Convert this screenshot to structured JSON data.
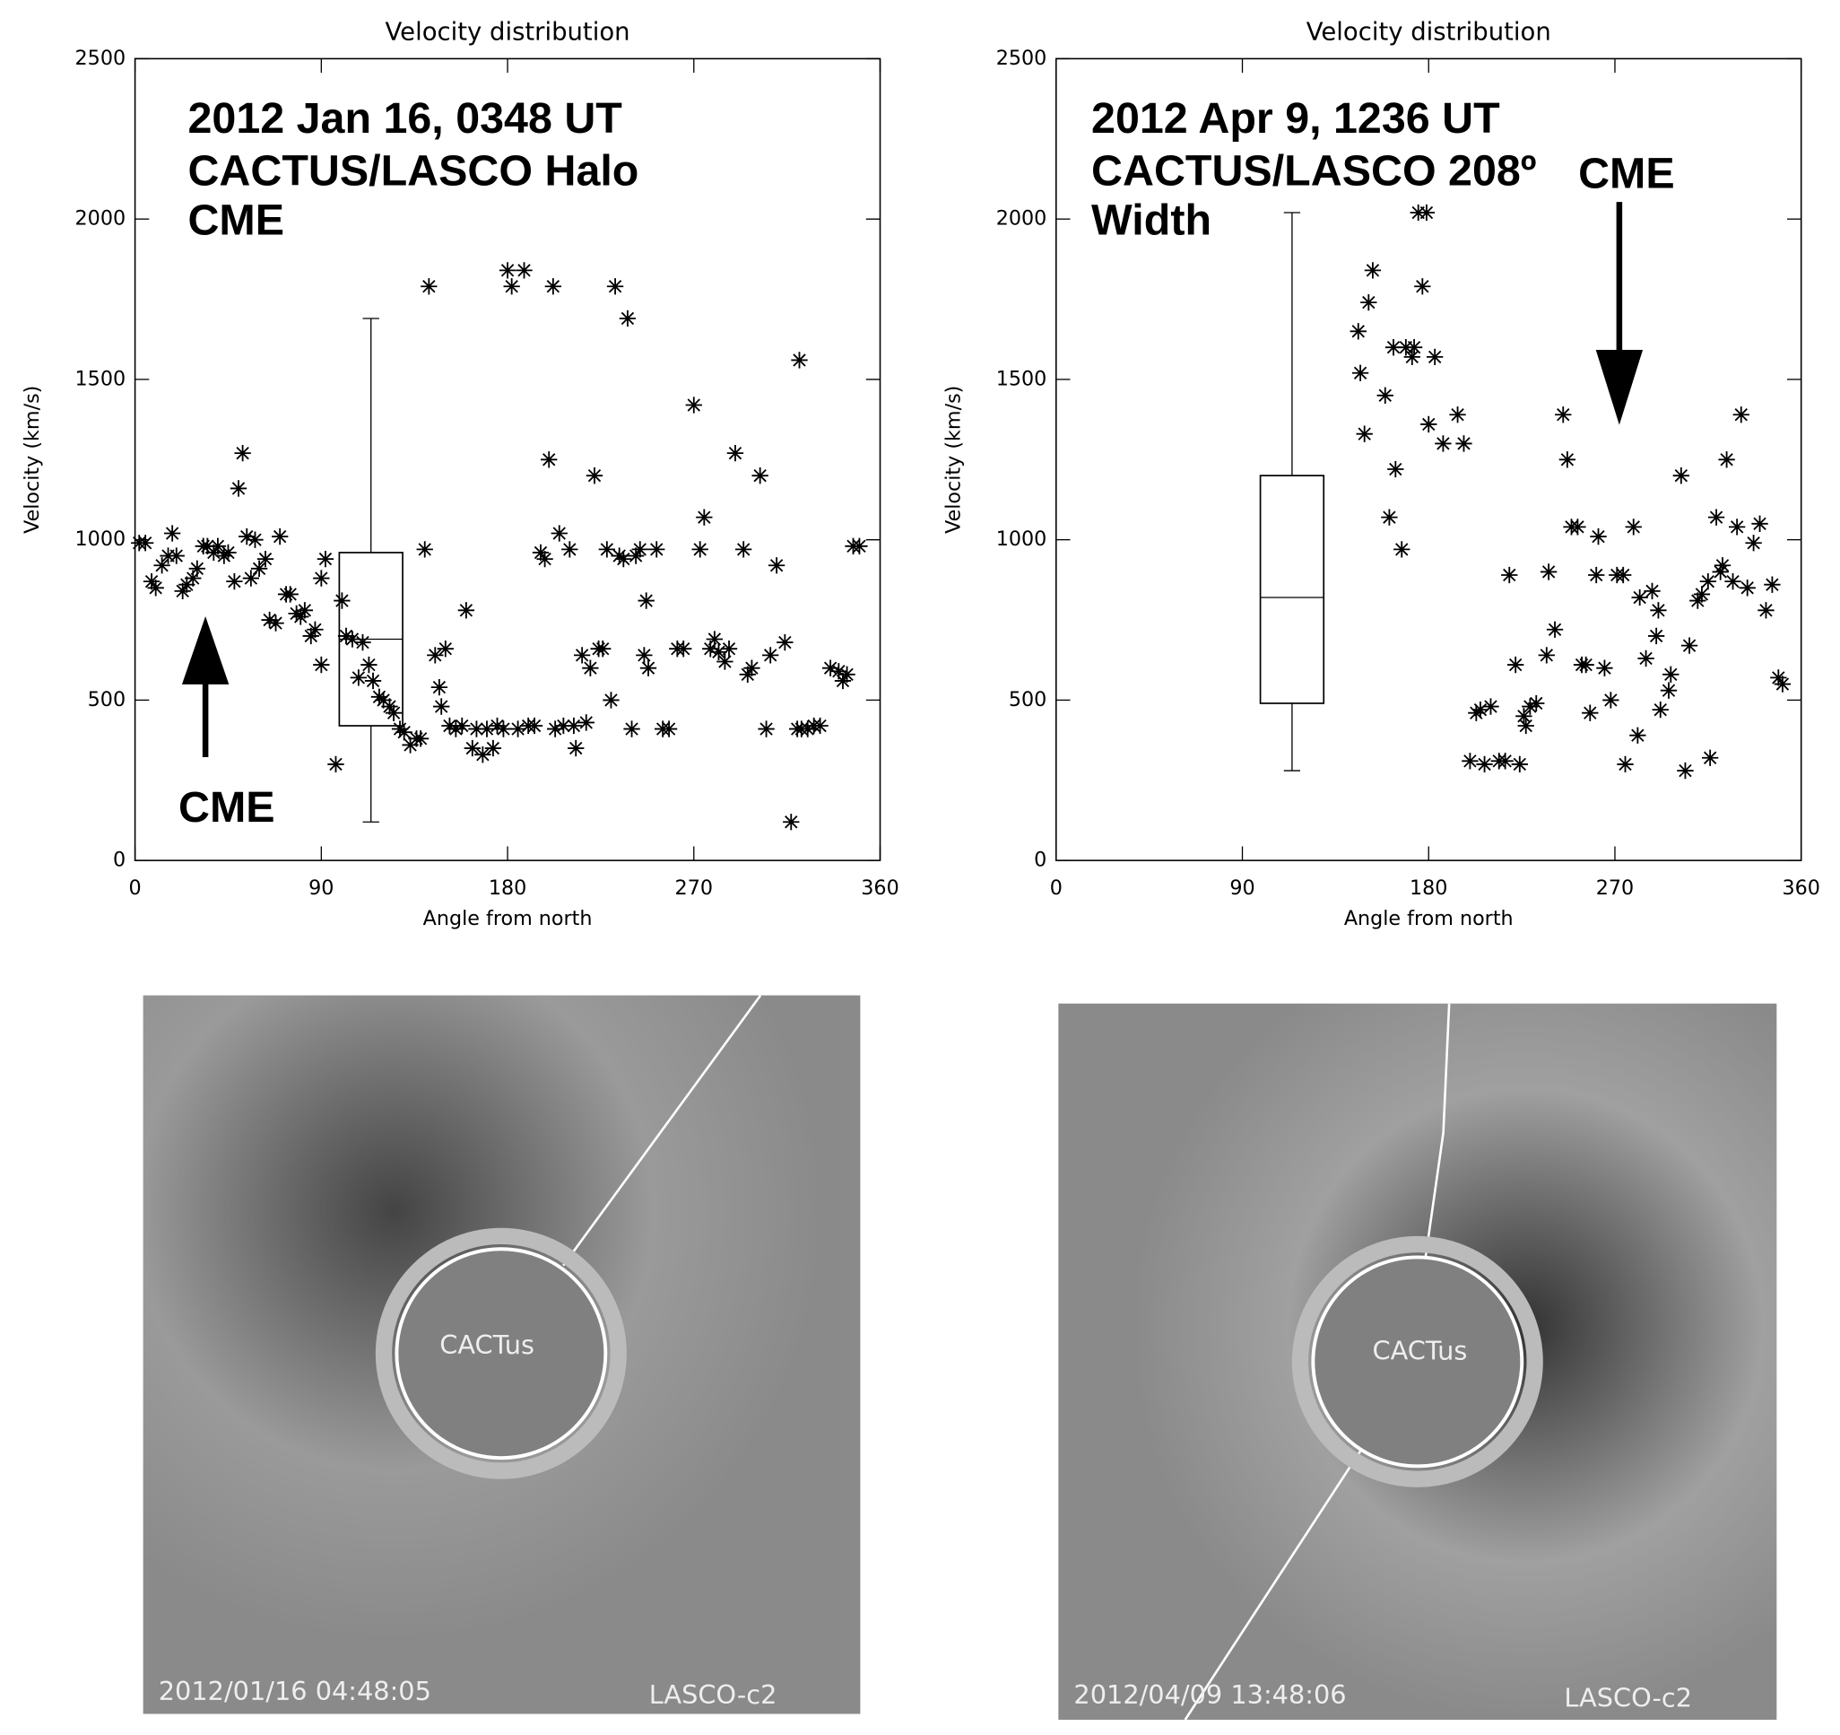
{
  "chart_data": [
    {
      "type": "scatter",
      "title": "Velocity distribution",
      "xlabel": "Angle from north",
      "ylabel": "Velocity (km/s)",
      "xlim": [
        0,
        360
      ],
      "xticks": [
        0,
        90,
        180,
        270,
        360
      ],
      "ylim": [
        0,
        2500
      ],
      "yticks": [
        0,
        500,
        1000,
        1500,
        2000,
        2500
      ],
      "annotations": [
        "2012 Jan 16, 0348 UT",
        "CACTUS/LASCO Halo",
        "CME",
        "CME"
      ],
      "box": {
        "x": 114,
        "min": 120,
        "q1": 420,
        "median": 690,
        "q3": 960,
        "max": 1690
      },
      "series": [
        {
          "color": "#000000",
          "x": [
            2,
            5,
            8,
            10,
            13,
            16,
            18,
            20,
            23,
            25,
            28,
            30,
            33,
            35,
            38,
            40,
            43,
            45,
            48,
            50,
            52,
            54,
            56,
            58,
            60,
            63,
            65,
            68,
            70,
            73,
            75,
            78,
            80,
            82,
            85,
            87,
            90,
            90,
            92,
            97,
            100,
            102,
            105,
            108,
            110,
            113,
            115,
            118,
            120,
            123,
            125,
            128,
            130,
            133,
            136,
            138,
            140,
            142,
            145,
            147,
            148,
            150,
            152,
            155,
            158,
            160,
            163,
            165,
            168,
            170,
            173,
            175,
            178,
            180,
            182,
            185,
            188,
            190,
            193,
            196,
            198,
            200,
            202,
            203,
            205,
            207,
            210,
            212,
            213,
            216,
            218,
            220,
            222,
            224,
            226,
            228,
            230,
            232,
            234,
            236,
            238,
            240,
            242,
            244,
            246,
            247,
            248,
            252,
            255,
            258,
            262,
            265,
            270,
            273,
            275,
            278,
            280,
            282,
            285,
            287,
            290,
            294,
            296,
            298,
            302,
            305,
            307,
            310,
            314,
            317,
            320,
            321,
            322,
            325,
            328,
            331,
            336,
            340,
            342,
            344,
            347,
            350
          ],
          "values": [
            990,
            990,
            870,
            850,
            920,
            950,
            1020,
            950,
            840,
            860,
            880,
            910,
            980,
            980,
            960,
            980,
            950,
            960,
            870,
            1160,
            1270,
            1010,
            880,
            1000,
            910,
            940,
            750,
            740,
            1010,
            830,
            830,
            770,
            760,
            780,
            700,
            720,
            610,
            880,
            940,
            300,
            810,
            700,
            690,
            570,
            680,
            610,
            560,
            510,
            500,
            480,
            460,
            410,
            400,
            360,
            380,
            380,
            970,
            1790,
            640,
            540,
            480,
            660,
            420,
            410,
            420,
            780,
            350,
            410,
            330,
            410,
            350,
            420,
            410,
            1840,
            1790,
            410,
            1840,
            420,
            420,
            960,
            940,
            1250,
            1790,
            410,
            1020,
            420,
            970,
            420,
            350,
            640,
            430,
            600,
            1200,
            660,
            660,
            970,
            500,
            1790,
            950,
            940,
            1690,
            410,
            950,
            970,
            640,
            810,
            600,
            970,
            410,
            410,
            660,
            660,
            1420,
            970,
            1070,
            660,
            690,
            650,
            620,
            660,
            1270,
            970,
            580,
            600,
            1200,
            410,
            640,
            920,
            680,
            120,
            410,
            1560,
            410,
            410,
            420,
            420,
            600,
            590,
            560,
            580,
            980,
            980
          ]
        }
      ]
    },
    {
      "type": "scatter",
      "title": "Velocity distribution",
      "xlabel": "Angle from north",
      "ylabel": "Velocity (km/s)",
      "xlim": [
        0,
        360
      ],
      "xticks": [
        0,
        90,
        180,
        270,
        360
      ],
      "ylim": [
        0,
        2500
      ],
      "yticks": [
        0,
        500,
        1000,
        1500,
        2000,
        2500
      ],
      "annotations": [
        "2012 Apr 9, 1236 UT",
        "CACTUS/LASCO 208º",
        "Width",
        "CME"
      ],
      "box": {
        "x": 114,
        "min": 280,
        "q1": 490,
        "median": 820,
        "q3": 1200,
        "max": 2020
      },
      "series": [
        {
          "color": "#000000",
          "x": [
            146,
            147,
            149,
            151,
            153,
            159,
            161,
            163,
            164,
            167,
            169,
            172,
            173,
            175,
            177,
            179,
            183,
            180,
            187,
            194,
            197,
            200,
            203,
            205,
            207,
            210,
            214,
            217,
            219,
            222,
            224,
            226,
            227,
            229,
            232,
            237,
            238,
            241,
            245,
            247,
            249,
            252,
            254,
            256,
            258,
            261,
            262,
            265,
            268,
            271,
            274,
            275,
            279,
            281,
            282,
            285,
            288,
            290,
            291,
            292,
            296,
            297,
            302,
            304,
            306,
            310,
            312,
            315,
            316,
            319,
            321,
            322,
            324,
            327,
            329,
            331,
            334,
            337,
            340,
            343,
            346,
            349,
            351
          ],
          "values": [
            1650,
            1520,
            1330,
            1740,
            1840,
            1450,
            1070,
            1600,
            1220,
            970,
            1600,
            1570,
            1600,
            2020,
            1790,
            2020,
            1570,
            1360,
            1300,
            1390,
            1300,
            310,
            460,
            470,
            300,
            480,
            310,
            310,
            890,
            610,
            300,
            450,
            420,
            480,
            490,
            640,
            900,
            720,
            1390,
            1250,
            1040,
            1040,
            610,
            610,
            460,
            890,
            1010,
            600,
            500,
            890,
            890,
            300,
            1040,
            390,
            820,
            630,
            840,
            700,
            780,
            470,
            530,
            580,
            1200,
            280,
            670,
            810,
            830,
            870,
            320,
            1070,
            900,
            920,
            1250,
            870,
            1040,
            1390,
            850,
            990,
            1050,
            780,
            860,
            570,
            550
          ]
        }
      ]
    }
  ],
  "images": [
    {
      "center_text": "CACTus",
      "timestamp": "2012/01/16 04:48:05",
      "instrument": "LASCO-c2"
    },
    {
      "center_text": "CACTus",
      "timestamp": "2012/04/09 13:48:06",
      "instrument": "LASCO-c2"
    }
  ]
}
